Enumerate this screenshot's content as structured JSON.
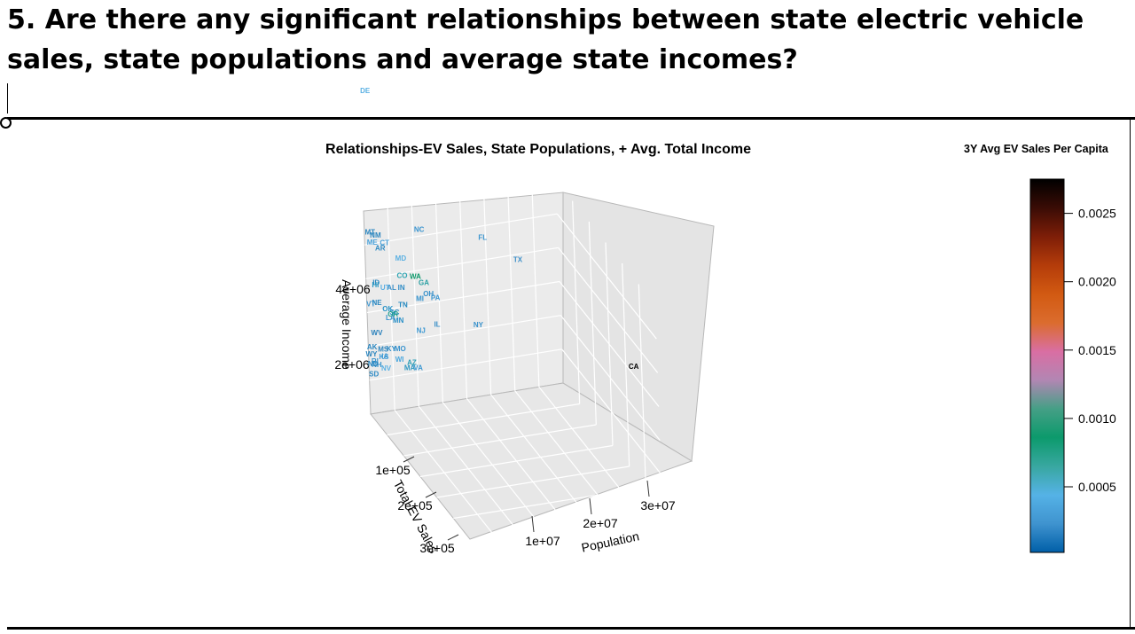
{
  "page": {
    "question": "5. Are there any significant relationships between state electric vehicle sales, state populations and average state incomes?"
  },
  "chart_data": {
    "type": "scatter",
    "title": "Relationships-EV Sales, State Populations, + Avg. Total Income",
    "xlabel": "Population",
    "ylabel": "Total EV Sales",
    "zlabel": "Average Income",
    "x_ticks": [
      "1e+07",
      "2e+07",
      "3e+07"
    ],
    "y_ticks": [
      "1e+05",
      "2e+05",
      "3e+05"
    ],
    "z_ticks": [
      "4e+06",
      "2e+06"
    ],
    "xlim": [
      0,
      40000000
    ],
    "ylim": [
      0,
      350000
    ],
    "zlim": [
      0,
      6000000
    ],
    "grid": true,
    "colorbar": {
      "title": "3Y Avg EV Sales Per Capita",
      "min": 2e-05,
      "max": 0.00275,
      "ticks": [
        "0.0005",
        "0.0010",
        "0.0015",
        "0.0020",
        "0.0025"
      ],
      "tick_values": [
        0.0005,
        0.001,
        0.0015,
        0.002,
        0.0025
      ],
      "colors": [
        "#005fa8",
        "#3f93cf",
        "#55b2e6",
        "#38a7a0",
        "#0c9a6c",
        "#459f86",
        "#b286b3",
        "#d96ea3",
        "#db6c2e",
        "#d25a12",
        "#b43c0a",
        "#7e1e08",
        "#3a0c05",
        "#000000"
      ]
    },
    "points": [
      {
        "label": "CA",
        "x": 39000000,
        "y": 280000,
        "z": 3400000,
        "color": "#000000"
      },
      {
        "label": "TX",
        "x": 29000000,
        "y": 45000,
        "z": 4300000,
        "color": "#3c8fc9"
      },
      {
        "label": "FL",
        "x": 21500000,
        "y": 52000,
        "z": 5200000,
        "color": "#3c96cf"
      },
      {
        "label": "NY",
        "x": 19800000,
        "y": 55000,
        "z": 2700000,
        "color": "#3891cc"
      },
      {
        "label": "IL",
        "x": 12700000,
        "y": 30000,
        "z": 2600000,
        "color": "#3c90c8"
      },
      {
        "label": "PA",
        "x": 13000000,
        "y": 22000,
        "z": 3300000,
        "color": "#3f98d2"
      },
      {
        "label": "OH",
        "x": 11800000,
        "y": 18000,
        "z": 3400000,
        "color": "#3790ca"
      },
      {
        "label": "NC",
        "x": 10500000,
        "y": 15000,
        "z": 5300000,
        "color": "#3a94cf"
      },
      {
        "label": "GA",
        "x": 10700000,
        "y": 22000,
        "z": 3800000,
        "color": "#2aa0a3"
      },
      {
        "label": "MI",
        "x": 10000000,
        "y": 18000,
        "z": 3300000,
        "color": "#3793ce"
      },
      {
        "label": "NJ",
        "x": 9300000,
        "y": 30000,
        "z": 2500000,
        "color": "#3d99d3"
      },
      {
        "label": "WA",
        "x": 7700000,
        "y": 45000,
        "z": 4300000,
        "color": "#0e9a6b"
      },
      {
        "label": "VA",
        "x": 8600000,
        "y": 28000,
        "z": 1400000,
        "color": "#3c98d2"
      },
      {
        "label": "AZ",
        "x": 7200000,
        "y": 30000,
        "z": 1600000,
        "color": "#2f9fb7"
      },
      {
        "label": "MA",
        "x": 7000000,
        "y": 25000,
        "z": 1400000,
        "color": "#2d98c2"
      },
      {
        "label": "TN",
        "x": 6900000,
        "y": 10000,
        "z": 3100000,
        "color": "#1f86bf"
      },
      {
        "label": "IN",
        "x": 6800000,
        "y": 8000,
        "z": 3600000,
        "color": "#2f8cc6"
      },
      {
        "label": "MO",
        "x": 6100000,
        "y": 8000,
        "z": 1800000,
        "color": "#3a94cf"
      },
      {
        "label": "MD",
        "x": 6200000,
        "y": 20000,
        "z": 4600000,
        "color": "#5bb0e2"
      },
      {
        "label": "WI",
        "x": 5900000,
        "y": 8000,
        "z": 1500000,
        "color": "#4aa7de"
      },
      {
        "label": "CO",
        "x": 5800000,
        "y": 30000,
        "z": 4200000,
        "color": "#2ea5b2"
      },
      {
        "label": "MN",
        "x": 5700000,
        "y": 12000,
        "z": 2700000,
        "color": "#2a90c8"
      },
      {
        "label": "SC",
        "x": 5200000,
        "y": 8000,
        "z": 2900000,
        "color": "#2b8ec6"
      },
      {
        "label": "AL",
        "x": 5000000,
        "y": 4000,
        "z": 3600000,
        "color": "#3b8fc7"
      },
      {
        "label": "LA",
        "x": 4600000,
        "y": 3000,
        "z": 2700000,
        "color": "#3892cc"
      },
      {
        "label": "KY",
        "x": 4500000,
        "y": 4000,
        "z": 1800000,
        "color": "#2f8cc6"
      },
      {
        "label": "OR",
        "x": 4200000,
        "y": 20000,
        "z": 3000000,
        "color": "#22a08f"
      },
      {
        "label": "OK",
        "x": 4000000,
        "y": 5000,
        "z": 3000000,
        "color": "#2993c6"
      },
      {
        "label": "CT",
        "x": 3600000,
        "y": 9000,
        "z": 5000000,
        "color": "#4aa2da"
      },
      {
        "label": "UT",
        "x": 3300000,
        "y": 10000,
        "z": 3700000,
        "color": "#5aaee2"
      },
      {
        "label": "IA",
        "x": 3200000,
        "y": 3000,
        "z": 1600000,
        "color": "#3c96cf"
      },
      {
        "label": "NV",
        "x": 3100000,
        "y": 8000,
        "z": 1300000,
        "color": "#5ab0e3"
      },
      {
        "label": "AR",
        "x": 3000000,
        "y": 3000,
        "z": 4800000,
        "color": "#2f8ac2"
      },
      {
        "label": "MS",
        "x": 2950000,
        "y": 2000,
        "z": 1800000,
        "color": "#2d85be"
      },
      {
        "label": "KS",
        "x": 2900000,
        "y": 4000,
        "z": 1600000,
        "color": "#4aa2da"
      },
      {
        "label": "NM",
        "x": 2100000,
        "y": 3000,
        "z": 5200000,
        "color": "#2c86bf"
      },
      {
        "label": "NE",
        "x": 1960000,
        "y": 2000,
        "z": 3200000,
        "color": "#2d88c0"
      },
      {
        "label": "ID",
        "x": 1900000,
        "y": 3000,
        "z": 3800000,
        "color": "#2d88c0"
      },
      {
        "label": "WV",
        "x": 1800000,
        "y": 1000,
        "z": 2300000,
        "color": "#2981bc"
      },
      {
        "label": "HI",
        "x": 1450000,
        "y": 8000,
        "z": 3800000,
        "color": "#2a99c4"
      },
      {
        "label": "NH",
        "x": 1380000,
        "y": 4000,
        "z": 1400000,
        "color": "#3c96cf"
      },
      {
        "label": "ME",
        "x": 1360000,
        "y": 3000,
        "z": 5000000,
        "color": "#4aa2da"
      },
      {
        "label": "MT",
        "x": 1080000,
        "y": 1500,
        "z": 5300000,
        "color": "#2c86bf"
      },
      {
        "label": "RI",
        "x": 1100000,
        "y": 3000,
        "z": 1500000,
        "color": "#3c96cf"
      },
      {
        "label": "DE",
        "x": 990000,
        "y": 3000,
        "z": 9500000,
        "color": "#5ab0e3"
      },
      {
        "label": "SD",
        "x": 890000,
        "y": 1000,
        "z": 1100000,
        "color": "#2f8cc6"
      },
      {
        "label": "ND",
        "x": 780000,
        "y": 800,
        "z": 1400000,
        "color": "#2a86bf"
      },
      {
        "label": "AK",
        "x": 730000,
        "y": 1000,
        "z": 1900000,
        "color": "#2a86bf"
      },
      {
        "label": "VT",
        "x": 640000,
        "y": 3000,
        "z": 3200000,
        "color": "#3c96cf"
      },
      {
        "label": "WY",
        "x": 580000,
        "y": 500,
        "z": 1700000,
        "color": "#2c86bf"
      }
    ]
  }
}
